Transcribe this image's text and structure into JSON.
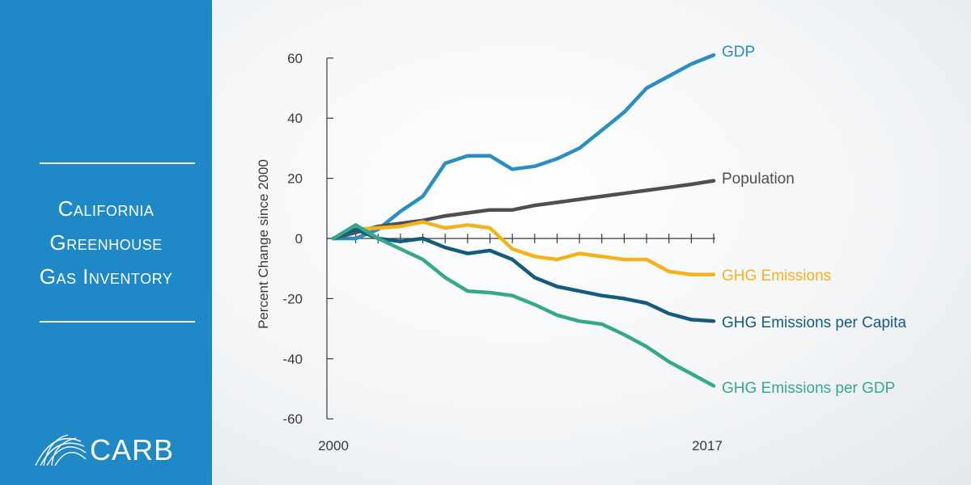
{
  "sidebar": {
    "title_lines": [
      "California",
      "Greenhouse",
      "Gas Inventory"
    ],
    "logo_text": "CARB",
    "background_color": "#1f88c6"
  },
  "chart_data": {
    "type": "line",
    "title": "California Greenhouse Gas Inventory",
    "xlabel": "",
    "ylabel": "Percent Change since 2000",
    "ylim": [
      -60,
      60
    ],
    "yticks": [
      60,
      40,
      20,
      0,
      -20,
      -40,
      -60
    ],
    "xlim": [
      2000,
      2017
    ],
    "x": [
      2000,
      2001,
      2002,
      2003,
      2004,
      2005,
      2006,
      2007,
      2008,
      2009,
      2010,
      2011,
      2012,
      2013,
      2014,
      2015,
      2016,
      2017
    ],
    "x_tick_labels": [
      "2000",
      "2017"
    ],
    "grid": false,
    "series": [
      {
        "name": "GDP",
        "color": "#2a8dc4",
        "values": [
          0,
          0,
          3,
          9,
          14,
          25,
          27.5,
          27.5,
          23,
          24,
          26.5,
          30,
          36,
          42,
          50,
          54,
          58,
          61
        ]
      },
      {
        "name": "Population",
        "color": "#4e4f51",
        "values": [
          0,
          2,
          4,
          5,
          6,
          7.5,
          8.5,
          9.5,
          9.5,
          11,
          12,
          13,
          14,
          15,
          16,
          17,
          18,
          19.2
        ]
      },
      {
        "name": "GHG Emissions",
        "color": "#f5b21c",
        "values": [
          0,
          3,
          3.5,
          4,
          5.5,
          3.5,
          4.5,
          3.5,
          -3.5,
          -6,
          -7,
          -5,
          -6,
          -7,
          -7,
          -11,
          -12,
          -12
        ]
      },
      {
        "name": "GHG Emissions per Capita",
        "color": "#155b7e",
        "values": [
          0,
          3,
          0,
          -1,
          0,
          -3,
          -5,
          -4,
          -7,
          -13,
          -16,
          -17.5,
          -19,
          -20,
          -21.5,
          -25,
          -27,
          -27.5
        ]
      },
      {
        "name": "GHG Emissions per GDP",
        "color": "#36a88b",
        "values": [
          0,
          4.5,
          0,
          -3.5,
          -7,
          -13,
          -17.5,
          -18,
          -19,
          -22,
          -25.5,
          -27.5,
          -28.5,
          -32,
          -36,
          -41,
          -45,
          -49
        ]
      }
    ]
  }
}
